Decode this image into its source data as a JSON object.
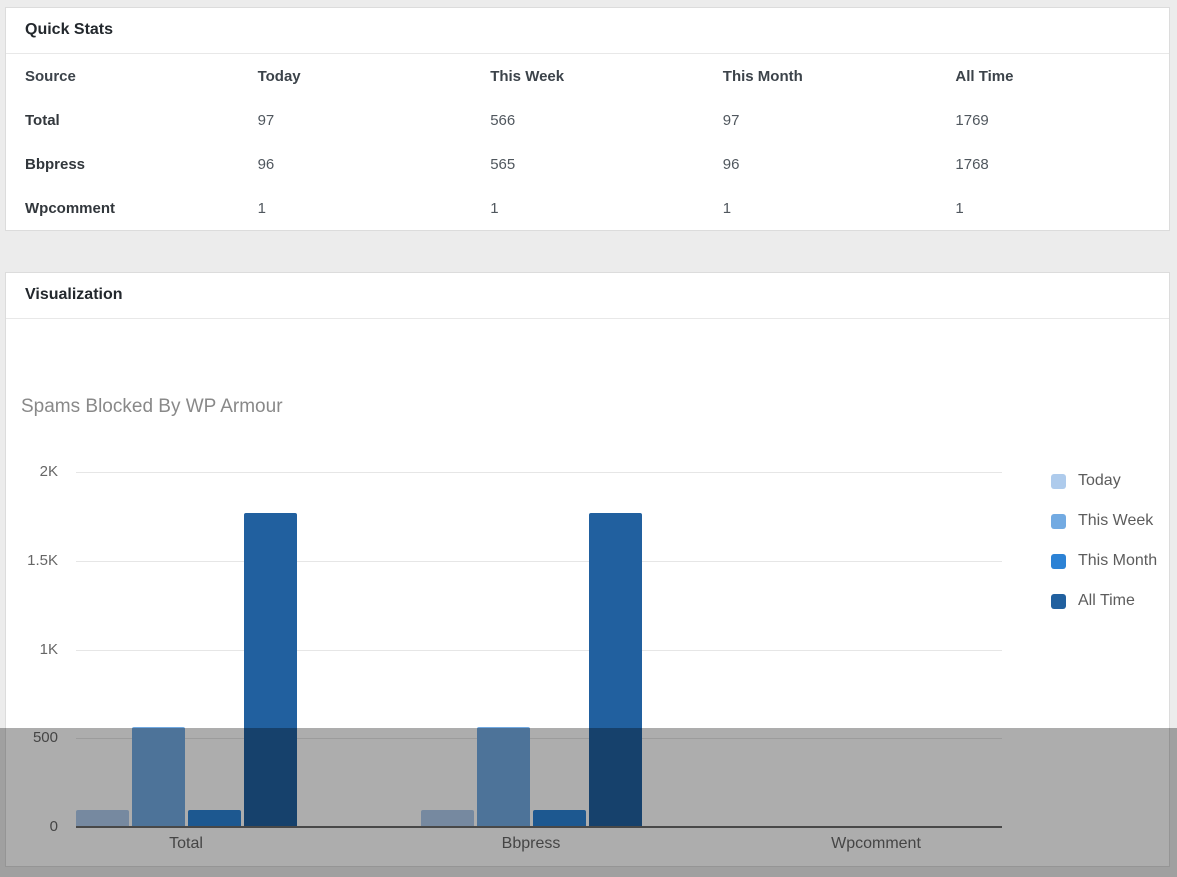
{
  "quick_stats": {
    "title": "Quick Stats",
    "columns": [
      "Source",
      "Today",
      "This Week",
      "This Month",
      "All Time"
    ],
    "rows": [
      {
        "label": "Total",
        "values": [
          "97",
          "566",
          "97",
          "1769"
        ]
      },
      {
        "label": "Bbpress",
        "values": [
          "96",
          "565",
          "96",
          "1768"
        ]
      },
      {
        "label": "Wpcomment",
        "values": [
          "1",
          "1",
          "1",
          "1"
        ]
      }
    ]
  },
  "visualization": {
    "title": "Visualization"
  },
  "chart_data": {
    "type": "bar",
    "title": "Spams Blocked By WP Armour",
    "xlabel": "Source",
    "ylabel": "",
    "categories": [
      "Total",
      "Bbpress",
      "Wpcomment"
    ],
    "series": [
      {
        "name": "Today",
        "color": "#aecbec",
        "values": [
          97,
          96,
          1
        ]
      },
      {
        "name": "This Week",
        "color": "#72aae2",
        "values": [
          566,
          565,
          1
        ]
      },
      {
        "name": "This Month",
        "color": "#2c82d5",
        "values": [
          97,
          96,
          1
        ]
      },
      {
        "name": "All Time",
        "color": "#21609f",
        "values": [
          1769,
          1768,
          1
        ]
      }
    ],
    "ylim": [
      0,
      2000
    ],
    "yticks": [
      {
        "value": 0,
        "label": "0"
      },
      {
        "value": 500,
        "label": "500"
      },
      {
        "value": 1000,
        "label": "1K"
      },
      {
        "value": 1500,
        "label": "1.5K"
      },
      {
        "value": 2000,
        "label": "2K"
      }
    ],
    "grid": true,
    "legend_position": "right"
  }
}
